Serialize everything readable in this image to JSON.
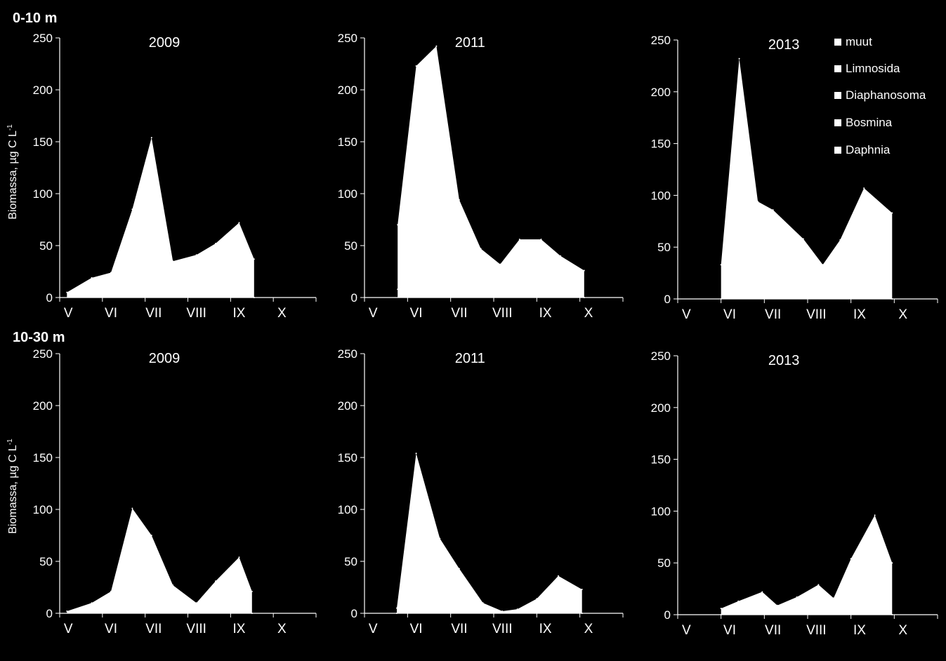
{
  "figure": {
    "background": "#000000",
    "foreground": "#ffffff",
    "section_labels": [
      "0-10 m",
      "10-30 m"
    ],
    "ylabel": "Biomassa, µg C L",
    "ylabel_superscript": "-1"
  },
  "legend": {
    "placement": "top-right (inside 0-10 m 2013 panel)",
    "entries": [
      "muut",
      "Limnosida",
      "Diaphanosoma",
      "Bosmina",
      "Daphnia"
    ]
  },
  "chart_data": [
    {
      "type": "area",
      "section": "0-10 m",
      "title": "2009",
      "categories": [
        "V",
        "VI",
        "VII",
        "VIII",
        "IX",
        "X"
      ],
      "ylim": [
        0,
        250
      ],
      "yticks": [
        0,
        50,
        100,
        150,
        200,
        250
      ],
      "x": [
        0.17,
        0.75,
        1.2,
        1.7,
        2.15,
        2.65,
        3.2,
        3.65,
        4.2,
        4.55,
        4.55
      ],
      "values": [
        5,
        19,
        24,
        85,
        154,
        35,
        41,
        52,
        72,
        37,
        0
      ],
      "grid": false
    },
    {
      "type": "area",
      "section": "0-10 m",
      "title": "2011",
      "categories": [
        "V",
        "VI",
        "VII",
        "VIII",
        "IX",
        "X"
      ],
      "ylim": [
        0,
        250
      ],
      "yticks": [
        0,
        50,
        100,
        150,
        200,
        250
      ],
      "x": [
        0.77,
        0.77,
        1.2,
        1.67,
        2.2,
        2.7,
        3.15,
        3.6,
        4.1,
        4.55,
        5.1,
        5.1
      ],
      "values": [
        8,
        70,
        223,
        242,
        94,
        47,
        32,
        56,
        56,
        40,
        26,
        0
      ],
      "grid": false
    },
    {
      "type": "area",
      "section": "0-10 m",
      "title": "2013",
      "categories": [
        "V",
        "VI",
        "VII",
        "VIII",
        "IX",
        "X"
      ],
      "ylim": [
        0,
        250
      ],
      "yticks": [
        0,
        50,
        100,
        150,
        200,
        250
      ],
      "x": [
        1.0,
        1.0,
        1.42,
        1.85,
        2.2,
        2.9,
        3.35,
        3.75,
        4.3,
        4.95,
        4.95
      ],
      "values": [
        0,
        33,
        232,
        94,
        86,
        58,
        33,
        57,
        107,
        83,
        0
      ],
      "grid": false
    },
    {
      "type": "area",
      "section": "10-30 m",
      "title": "2009",
      "categories": [
        "V",
        "VI",
        "VII",
        "VIII",
        "IX",
        "X"
      ],
      "ylim": [
        0,
        250
      ],
      "yticks": [
        0,
        50,
        100,
        150,
        200,
        250
      ],
      "x": [
        0.17,
        0.75,
        1.2,
        1.7,
        2.15,
        2.65,
        3.2,
        3.65,
        4.2,
        4.5,
        4.5
      ],
      "values": [
        2,
        10,
        21,
        101,
        75,
        27,
        10,
        31,
        54,
        21,
        0
      ],
      "grid": false
    },
    {
      "type": "area",
      "section": "10-30 m",
      "title": "2011",
      "categories": [
        "V",
        "VI",
        "VII",
        "VIII",
        "IX",
        "X"
      ],
      "ylim": [
        0,
        250
      ],
      "yticks": [
        0,
        50,
        100,
        150,
        200,
        250
      ],
      "x": [
        0.75,
        0.75,
        1.2,
        1.75,
        2.2,
        2.75,
        3.2,
        3.55,
        4.0,
        4.5,
        5.05,
        5.05
      ],
      "values": [
        0,
        5,
        154,
        72,
        43,
        10,
        2,
        4,
        14,
        36,
        23,
        0
      ],
      "grid": false
    },
    {
      "type": "area",
      "section": "10-30 m",
      "title": "2013",
      "categories": [
        "V",
        "VI",
        "VII",
        "VIII",
        "IX",
        "X"
      ],
      "ylim": [
        0,
        250
      ],
      "yticks": [
        0,
        50,
        100,
        150,
        200,
        250
      ],
      "x": [
        1.0,
        1.0,
        1.4,
        1.95,
        2.3,
        2.75,
        3.25,
        3.6,
        4.0,
        4.55,
        4.95,
        4.95
      ],
      "values": [
        0,
        6,
        13,
        22,
        9,
        17,
        29,
        16,
        54,
        96,
        50,
        0
      ],
      "grid": false
    }
  ]
}
